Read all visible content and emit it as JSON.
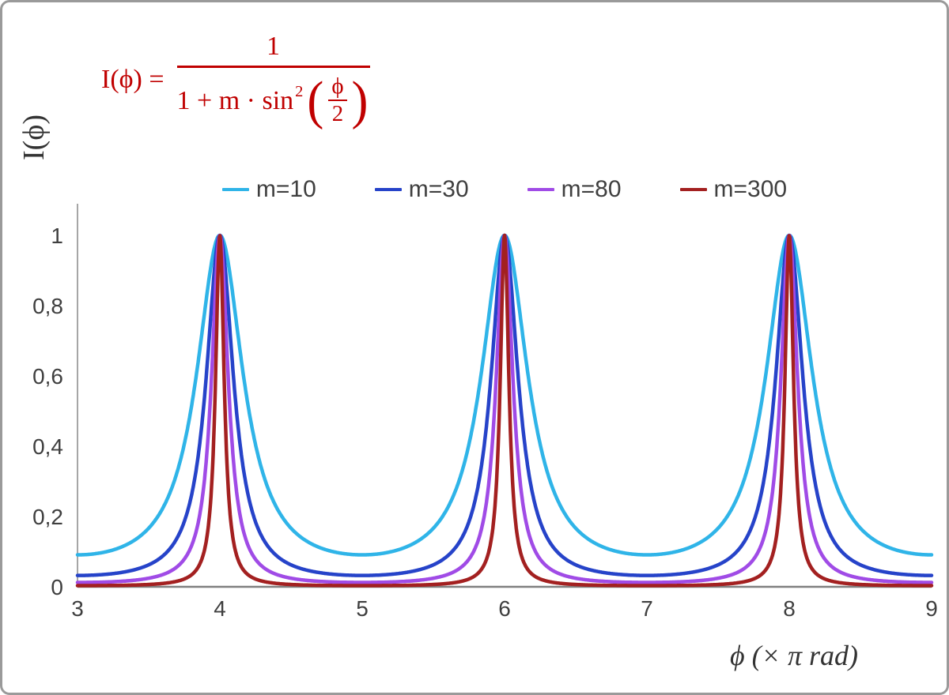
{
  "formula": {
    "lhs": "I(ϕ) =",
    "numerator": "1",
    "den_prefix": "1 + m · sin",
    "den_sup": "2",
    "paren_open": "(",
    "paren_close": ")",
    "inner_num": "ϕ",
    "inner_den": "2"
  },
  "axes": {
    "y_title": "I(ϕ)",
    "x_title": "ϕ  (× π rad)"
  },
  "colors": {
    "formula": "#c00000",
    "x_axis_line": "#808080",
    "y_axis_line": "#a6a6a6",
    "tick_text": "#3f3f3f",
    "frame_border": "#9a9a9a"
  },
  "chart_data": {
    "type": "line",
    "title": "",
    "xlabel": "ϕ (× π rad)",
    "ylabel": "I(ϕ)",
    "xlim": [
      3,
      9
    ],
    "ylim": [
      0,
      1
    ],
    "x_ticks": [
      3,
      4,
      5,
      6,
      7,
      8,
      9
    ],
    "y_ticks": [
      0,
      0.2,
      0.4,
      0.6,
      0.8,
      1
    ],
    "y_tick_labels": [
      "0",
      "0,2",
      "0,4",
      "0,6",
      "0,8",
      "1"
    ],
    "grid": false,
    "legend_position": "top-center",
    "function": "I(ϕ) = 1 / (1 + m·sin²(ϕ/2)), with ϕ expressed in units of π rad",
    "peaks": {
      "x": [
        4,
        6,
        8
      ],
      "y": 1
    },
    "series": [
      {
        "name": "m=10",
        "m": 10,
        "color": "#2fb4e8",
        "min_value": 0.091
      },
      {
        "name": "m=30",
        "m": 30,
        "color": "#2643c9",
        "min_value": 0.032
      },
      {
        "name": "m=80",
        "m": 80,
        "color": "#a04be6",
        "min_value": 0.012
      },
      {
        "name": "m=300",
        "m": 300,
        "color": "#a32020",
        "min_value": 0.003
      }
    ]
  }
}
